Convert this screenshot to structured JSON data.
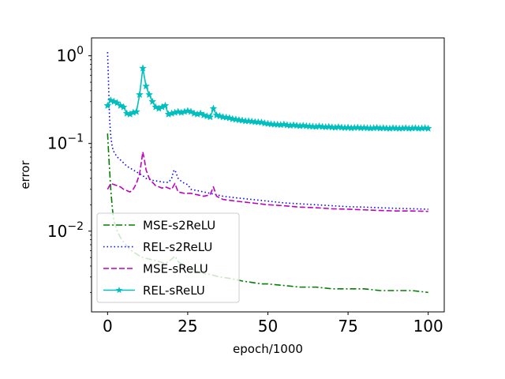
{
  "chart_data": {
    "type": "line",
    "title": "",
    "xlabel": "epoch/1000",
    "ylabel": "error",
    "xlim": [
      -5,
      105
    ],
    "ylim": [
      0.0012,
      1.6
    ],
    "yscale": "log",
    "xticks": [
      0,
      25,
      50,
      75,
      100
    ],
    "xtick_labels": [
      "0",
      "25",
      "50",
      "75",
      "100"
    ],
    "yticks": [
      1,
      0.1,
      0.01
    ],
    "ytick_labels": [
      {
        "base": "10",
        "exp": "0"
      },
      {
        "base": "10",
        "exp": "−1"
      },
      {
        "base": "10",
        "exp": "−2"
      }
    ],
    "grid": false,
    "legend_position": "lower-left",
    "series": [
      {
        "name": "MSE-s2ReLU",
        "color": "#008000",
        "style": "dashdot",
        "marker": "none",
        "x": [
          0,
          0.5,
          1,
          1.5,
          2,
          3,
          4,
          5,
          6,
          7,
          8,
          9,
          10,
          11,
          12,
          13,
          14,
          15,
          16,
          17,
          18,
          19,
          20,
          21,
          22,
          24,
          26,
          28,
          30,
          32,
          35,
          38,
          40,
          42,
          45,
          48,
          50,
          55,
          60,
          65,
          70,
          75,
          80,
          85,
          90,
          95,
          100
        ],
        "y": [
          0.13,
          0.06,
          0.03,
          0.018,
          0.013,
          0.01,
          0.0085,
          0.0075,
          0.0068,
          0.0062,
          0.0058,
          0.0055,
          0.0052,
          0.005,
          0.0049,
          0.0048,
          0.0047,
          0.0046,
          0.0045,
          0.0044,
          0.0043,
          0.0045,
          0.0048,
          0.0052,
          0.0045,
          0.004,
          0.0037,
          0.0035,
          0.0033,
          0.0032,
          0.003,
          0.0029,
          0.0028,
          0.0027,
          0.0026,
          0.0025,
          0.0025,
          0.0024,
          0.0023,
          0.0023,
          0.0022,
          0.0022,
          0.0022,
          0.0021,
          0.0021,
          0.0021,
          0.002
        ]
      },
      {
        "name": "REL-s2ReLU",
        "color": "#0000ff",
        "style": "dotted",
        "marker": "none",
        "x": [
          0,
          0.3,
          0.6,
          1,
          1.5,
          2,
          3,
          4,
          5,
          6,
          8,
          10,
          11,
          12,
          14,
          16,
          18,
          19,
          20,
          20.5,
          21,
          22,
          23,
          24,
          25,
          26,
          28,
          30,
          32,
          34,
          36,
          40,
          45,
          50,
          55,
          60,
          65,
          70,
          75,
          80,
          85,
          90,
          95,
          100
        ],
        "y": [
          1.1,
          0.5,
          0.2,
          0.12,
          0.09,
          0.08,
          0.07,
          0.065,
          0.06,
          0.055,
          0.05,
          0.045,
          0.043,
          0.04,
          0.038,
          0.037,
          0.036,
          0.036,
          0.04,
          0.048,
          0.05,
          0.04,
          0.037,
          0.035,
          0.034,
          0.03,
          0.029,
          0.028,
          0.027,
          0.026,
          0.025,
          0.024,
          0.023,
          0.022,
          0.021,
          0.0205,
          0.02,
          0.0195,
          0.019,
          0.0188,
          0.0185,
          0.0182,
          0.018,
          0.0178
        ]
      },
      {
        "name": "MSE-sReLU",
        "color": "#bf00bf",
        "style": "dashed",
        "marker": "none",
        "x": [
          0,
          1,
          2,
          3,
          4,
          5,
          6,
          7,
          8,
          9,
          10,
          10.5,
          11,
          11.5,
          12,
          13,
          14,
          15,
          16,
          17,
          18,
          19,
          20,
          21,
          22,
          24,
          26,
          28,
          30,
          32,
          33,
          34,
          36,
          40,
          45,
          50,
          55,
          60,
          65,
          70,
          75,
          80,
          85,
          90,
          95,
          100
        ],
        "y": [
          0.03,
          0.035,
          0.034,
          0.033,
          0.032,
          0.03,
          0.029,
          0.028,
          0.03,
          0.035,
          0.045,
          0.06,
          0.08,
          0.065,
          0.05,
          0.04,
          0.036,
          0.033,
          0.032,
          0.031,
          0.032,
          0.031,
          0.03,
          0.035,
          0.028,
          0.027,
          0.027,
          0.026,
          0.025,
          0.026,
          0.032,
          0.025,
          0.023,
          0.022,
          0.021,
          0.02,
          0.0195,
          0.0188,
          0.0185,
          0.018,
          0.0178,
          0.0175,
          0.0172,
          0.017,
          0.017,
          0.0168
        ]
      },
      {
        "name": "REL-sReLU",
        "color": "#00bfbf",
        "style": "solid",
        "marker": "star",
        "x": [
          0,
          1,
          2,
          3,
          4,
          5,
          6,
          7,
          8,
          9,
          10,
          11,
          12,
          13,
          14,
          15,
          16,
          17,
          18,
          19,
          20,
          21,
          22,
          23,
          24,
          25,
          26,
          27,
          28,
          29,
          30,
          31,
          32,
          33,
          34,
          35,
          36,
          37,
          38,
          39,
          40,
          41,
          42,
          43,
          44,
          45,
          46,
          47,
          48,
          49,
          50,
          51,
          52,
          53,
          54,
          55,
          56,
          57,
          58,
          59,
          60,
          61,
          62,
          63,
          64,
          65,
          66,
          67,
          68,
          69,
          70,
          71,
          72,
          73,
          74,
          75,
          76,
          77,
          78,
          79,
          80,
          81,
          82,
          83,
          84,
          85,
          86,
          87,
          88,
          89,
          90,
          91,
          92,
          93,
          94,
          95,
          96,
          97,
          98,
          99,
          100
        ],
        "y": [
          0.27,
          0.31,
          0.3,
          0.29,
          0.27,
          0.26,
          0.22,
          0.215,
          0.225,
          0.23,
          0.36,
          0.72,
          0.45,
          0.36,
          0.3,
          0.26,
          0.25,
          0.26,
          0.27,
          0.215,
          0.22,
          0.225,
          0.23,
          0.225,
          0.23,
          0.235,
          0.23,
          0.22,
          0.215,
          0.22,
          0.21,
          0.205,
          0.2,
          0.25,
          0.21,
          0.205,
          0.2,
          0.198,
          0.195,
          0.19,
          0.188,
          0.185,
          0.183,
          0.18,
          0.18,
          0.178,
          0.176,
          0.175,
          0.174,
          0.17,
          0.168,
          0.166,
          0.165,
          0.164,
          0.163,
          0.165,
          0.162,
          0.16,
          0.162,
          0.16,
          0.158,
          0.16,
          0.158,
          0.157,
          0.156,
          0.155,
          0.157,
          0.155,
          0.154,
          0.155,
          0.153,
          0.152,
          0.154,
          0.152,
          0.151,
          0.152,
          0.15,
          0.151,
          0.152,
          0.15,
          0.151,
          0.15,
          0.149,
          0.15,
          0.151,
          0.149,
          0.15,
          0.149,
          0.148,
          0.15,
          0.149,
          0.148,
          0.149,
          0.15,
          0.148,
          0.149,
          0.15,
          0.148,
          0.149,
          0.15,
          0.148
        ]
      }
    ]
  }
}
